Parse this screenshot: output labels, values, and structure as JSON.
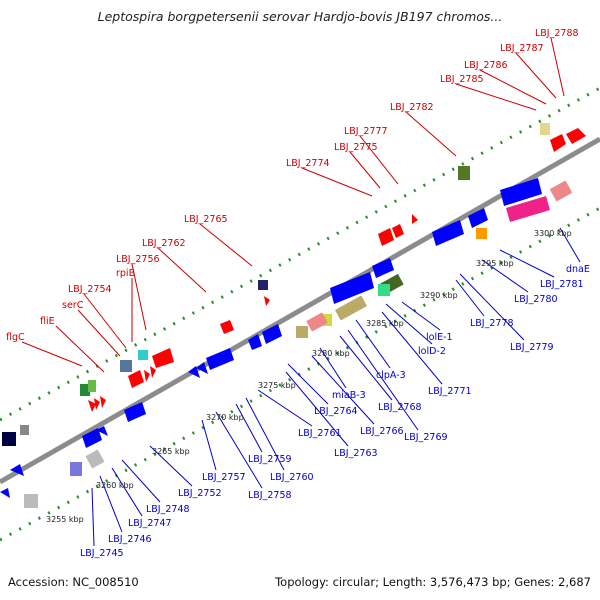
{
  "title": "Leptospira borgpetersenii serovar Hardjo-bovis JB197 chromos...",
  "footer": {
    "accession": "Accession: NC_008510",
    "summary": "Topology: circular; Length: 3,576,473 bp; Genes: 2,687"
  },
  "colors": {
    "label_top": "#cc0000",
    "label_bottom": "#0000cc",
    "backbone": "#8c8c8c",
    "ticks": "#2e8b2e",
    "forward_gene": "#ff0000",
    "reverse_gene": "#0000ff"
  },
  "scale_labels": [
    "3255 kbp",
    "3260 kbp",
    "3265 kbp",
    "3270 kbp",
    "3275 kbp",
    "3280 kbp",
    "3285 kbp",
    "3290 kbp",
    "3295 kbp",
    "3300 kbp"
  ],
  "top_labels": [
    "flgC",
    "fliE",
    "serC",
    "LBJ_2754",
    "rpiB",
    "LBJ_2756",
    "LBJ_2762",
    "LBJ_2765",
    "LBJ_2774",
    "LBJ_2775",
    "LBJ_2777",
    "LBJ_2782",
    "LBJ_2785",
    "LBJ_2786",
    "LBJ_2787",
    "LBJ_2788"
  ],
  "bottom_labels": [
    "LBJ_2745",
    "LBJ_2746",
    "LBJ_2747",
    "LBJ_2748",
    "LBJ_2752",
    "LBJ_2757",
    "LBJ_2758",
    "LBJ_2759",
    "LBJ_2760",
    "LBJ_2761",
    "LBJ_2763",
    "LBJ_2764",
    "miaB-3",
    "LBJ_2766",
    "LBJ_2768",
    "LBJ_2769",
    "clpA-3",
    "LBJ_2771",
    "lolD-2",
    "lolE-1",
    "LBJ_2778",
    "LBJ_2779",
    "LBJ_2780",
    "LBJ_2781",
    "dnaE"
  ]
}
